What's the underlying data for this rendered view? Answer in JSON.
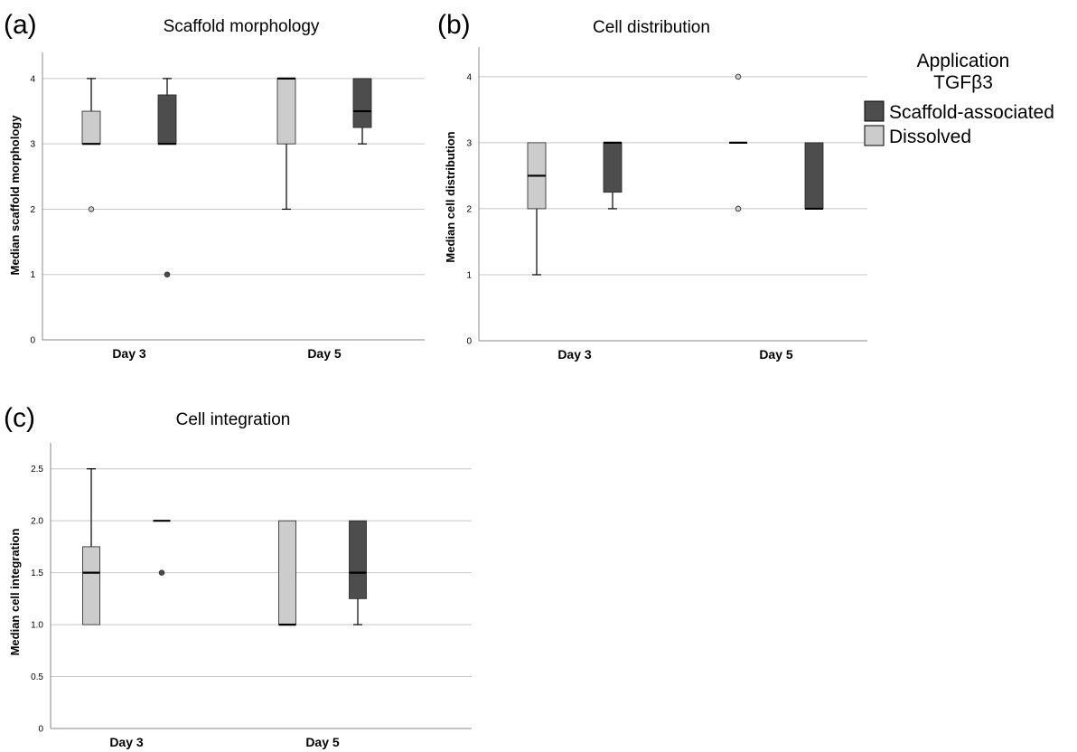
{
  "legend": {
    "title": "Application",
    "subtitle": "TGFβ3",
    "items": [
      {
        "label": "Scaffold-associated",
        "color": "#4d4d4d"
      },
      {
        "label": "Dissolved",
        "color": "#cccccc"
      }
    ]
  },
  "chart_data": [
    {
      "type": "box",
      "panel": "(a)",
      "title": "Scaffold morphology",
      "xlabel": "",
      "ylabel": "Median scaffold morphology",
      "categories": [
        "Day 3",
        "Day 5"
      ],
      "yticks": [
        "0",
        "1",
        "2",
        "3",
        "4"
      ],
      "ylim": [
        0,
        4.4
      ],
      "grid": true,
      "series": [
        {
          "name": "Dissolved",
          "color": "#cccccc",
          "boxes": [
            {
              "min": 3,
              "q1": 3,
              "median": 3,
              "q3": 3.5,
              "max": 4,
              "outliers": [
                2
              ]
            },
            {
              "min": 2,
              "q1": 3,
              "median": 4,
              "q3": 4,
              "max": 4,
              "outliers": []
            }
          ]
        },
        {
          "name": "Scaffold-associated",
          "color": "#4d4d4d",
          "boxes": [
            {
              "min": 3,
              "q1": 3,
              "median": 3,
              "q3": 3.75,
              "max": 4,
              "outliers": [
                1
              ]
            },
            {
              "min": 3,
              "q1": 3.25,
              "median": 3.5,
              "q3": 4,
              "max": 4,
              "outliers": []
            }
          ]
        }
      ]
    },
    {
      "type": "box",
      "panel": "(b)",
      "title": "Cell distribution",
      "xlabel": "",
      "ylabel": "Median cell distribution",
      "categories": [
        "Day 3",
        "Day 5"
      ],
      "yticks": [
        "0",
        "1",
        "2",
        "3",
        "4"
      ],
      "ylim": [
        0,
        4.45
      ],
      "grid": true,
      "series": [
        {
          "name": "Dissolved",
          "color": "#cccccc",
          "boxes": [
            {
              "min": 1,
              "q1": 2,
              "median": 2.5,
              "q3": 3,
              "max": 3,
              "outliers": []
            },
            {
              "min": 3,
              "q1": 3,
              "median": 3,
              "q3": 3,
              "max": 3,
              "outliers": [
                4,
                2
              ]
            }
          ]
        },
        {
          "name": "Scaffold-associated",
          "color": "#4d4d4d",
          "boxes": [
            {
              "min": 2,
              "q1": 2.25,
              "median": 3,
              "q3": 3,
              "max": 3,
              "outliers": []
            },
            {
              "min": 2,
              "q1": 2,
              "median": 2,
              "q3": 3,
              "max": 3,
              "outliers": []
            }
          ]
        }
      ]
    },
    {
      "type": "box",
      "panel": "(c)",
      "title": "Cell integration",
      "xlabel": "",
      "ylabel": "Median cell integration",
      "categories": [
        "Day 3",
        "Day 5"
      ],
      "yticks": [
        "0",
        "0.5",
        "1.0",
        "1.5",
        "2.0",
        "2.5"
      ],
      "ylim": [
        0,
        2.75
      ],
      "grid": true,
      "series": [
        {
          "name": "Dissolved",
          "color": "#cccccc",
          "boxes": [
            {
              "min": 1,
              "q1": 1,
              "median": 1.5,
              "q3": 1.75,
              "max": 2.5,
              "outliers": []
            },
            {
              "min": 1,
              "q1": 1,
              "median": 1,
              "q3": 2,
              "max": 2,
              "outliers": []
            }
          ]
        },
        {
          "name": "Scaffold-associated",
          "color": "#4d4d4d",
          "boxes": [
            {
              "min": 2,
              "q1": 2,
              "median": 2,
              "q3": 2,
              "max": 2,
              "outliers": [
                1.5
              ]
            },
            {
              "min": 1,
              "q1": 1.25,
              "median": 1.5,
              "q3": 2,
              "max": 2,
              "outliers": []
            }
          ]
        }
      ]
    }
  ]
}
